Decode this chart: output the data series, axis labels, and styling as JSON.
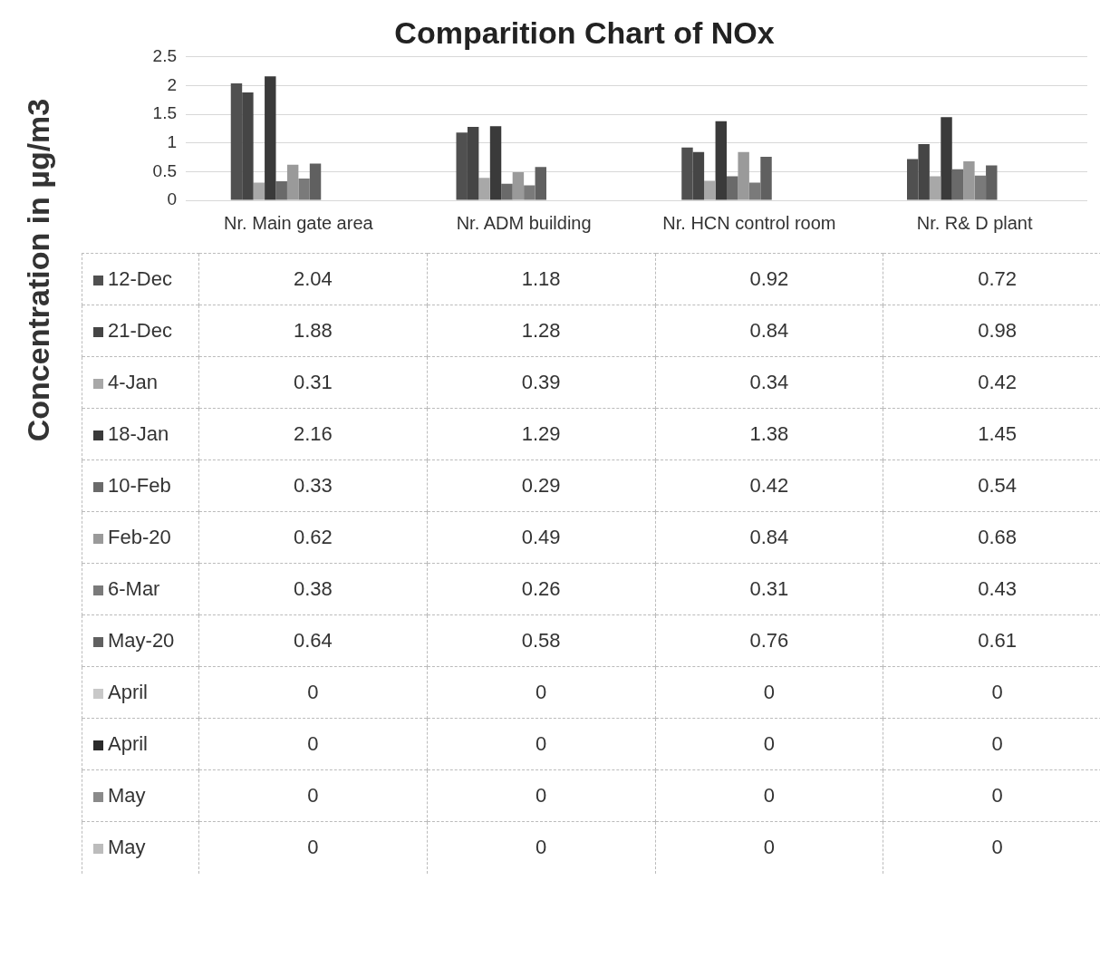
{
  "chart_data": {
    "type": "bar",
    "title": "Comparition Chart of NOx",
    "ylabel": "Concentration in µg/m3",
    "categories": [
      "Nr. Main gate area",
      "Nr. ADM building",
      "Nr. HCN control room",
      "Nr. R& D plant"
    ],
    "series": [
      {
        "name": "12-Dec",
        "color": "#505050",
        "values": [
          2.04,
          1.18,
          0.92,
          0.72
        ]
      },
      {
        "name": "21-Dec",
        "color": "#454545",
        "values": [
          1.88,
          1.28,
          0.84,
          0.98
        ]
      },
      {
        "name": "4-Jan",
        "color": "#a8a8a8",
        "values": [
          0.31,
          0.39,
          0.34,
          0.42
        ]
      },
      {
        "name": "18-Jan",
        "color": "#3a3a3a",
        "values": [
          2.16,
          1.29,
          1.38,
          1.45
        ]
      },
      {
        "name": "10-Feb",
        "color": "#6a6a6a",
        "values": [
          0.33,
          0.29,
          0.42,
          0.54
        ]
      },
      {
        "name": "Feb-20",
        "color": "#9a9a9a",
        "values": [
          0.62,
          0.49,
          0.84,
          0.68
        ]
      },
      {
        "name": "6-Mar",
        "color": "#7a7a7a",
        "values": [
          0.38,
          0.26,
          0.31,
          0.43
        ]
      },
      {
        "name": "May-20",
        "color": "#606060",
        "values": [
          0.64,
          0.58,
          0.76,
          0.61
        ]
      },
      {
        "name": "April",
        "color": "#c8c8c8",
        "values": [
          0,
          0,
          0,
          0
        ]
      },
      {
        "name": "April",
        "color": "#2a2a2a",
        "values": [
          0,
          0,
          0,
          0
        ]
      },
      {
        "name": "May",
        "color": "#8a8a8a",
        "values": [
          0,
          0,
          0,
          0
        ]
      },
      {
        "name": "May",
        "color": "#bcbcbc",
        "values": [
          0,
          0,
          0,
          0
        ]
      }
    ],
    "ylim": [
      0,
      2.5
    ],
    "yticks": [
      0,
      0.5,
      1,
      1.5,
      2,
      2.5
    ],
    "grid": "y",
    "legend": "bottom",
    "data_labels": true
  }
}
